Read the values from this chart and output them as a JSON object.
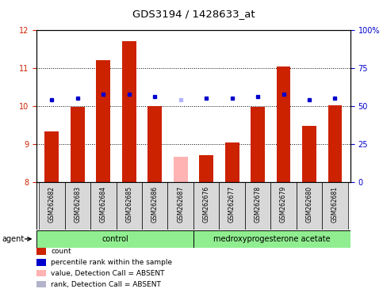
{
  "title": "GDS3194 / 1428633_at",
  "samples": [
    "GSM262682",
    "GSM262683",
    "GSM262684",
    "GSM262685",
    "GSM262686",
    "GSM262687",
    "GSM262676",
    "GSM262677",
    "GSM262678",
    "GSM262679",
    "GSM262680",
    "GSM262681"
  ],
  "bar_values": [
    9.35,
    9.98,
    11.22,
    11.72,
    10.0,
    8.68,
    8.72,
    9.05,
    9.98,
    11.05,
    9.48,
    10.02
  ],
  "bar_colors": [
    "#cc2200",
    "#cc2200",
    "#cc2200",
    "#cc2200",
    "#cc2200",
    "#ffb3b3",
    "#cc2200",
    "#cc2200",
    "#cc2200",
    "#cc2200",
    "#cc2200",
    "#cc2200"
  ],
  "dot_values": [
    10.18,
    10.22,
    10.32,
    10.32,
    10.25,
    10.18,
    10.22,
    10.22,
    10.25,
    10.32,
    10.18,
    10.22
  ],
  "dot_colors": [
    "#0000cc",
    "#0000cc",
    "#0000cc",
    "#0000cc",
    "#0000cc",
    "#b3b3ff",
    "#0000cc",
    "#0000cc",
    "#0000cc",
    "#0000cc",
    "#0000cc",
    "#0000cc"
  ],
  "ylim": [
    8.0,
    12.0
  ],
  "yticks_left": [
    8,
    9,
    10,
    11,
    12
  ],
  "yticks_right_pct": [
    0,
    25,
    50,
    75,
    100
  ],
  "control_count": 6,
  "treatment_count": 6,
  "control_label": "control",
  "treatment_label": "medroxyprogesterone acetate",
  "agent_label": "agent",
  "legend_items": [
    {
      "label": "count",
      "color": "#cc2200"
    },
    {
      "label": "percentile rank within the sample",
      "color": "#0000cc"
    },
    {
      "label": "value, Detection Call = ABSENT",
      "color": "#ffb3b3"
    },
    {
      "label": "rank, Detection Call = ABSENT",
      "color": "#b3b3cc"
    }
  ],
  "plot_bg": "#ffffff",
  "cell_bg": "#d8d8d8",
  "agent_bg": "#90ee90",
  "title_fontsize": 9.5,
  "tick_fontsize": 7,
  "sample_fontsize": 5.5,
  "agent_fontsize": 7,
  "legend_fontsize": 6.5
}
